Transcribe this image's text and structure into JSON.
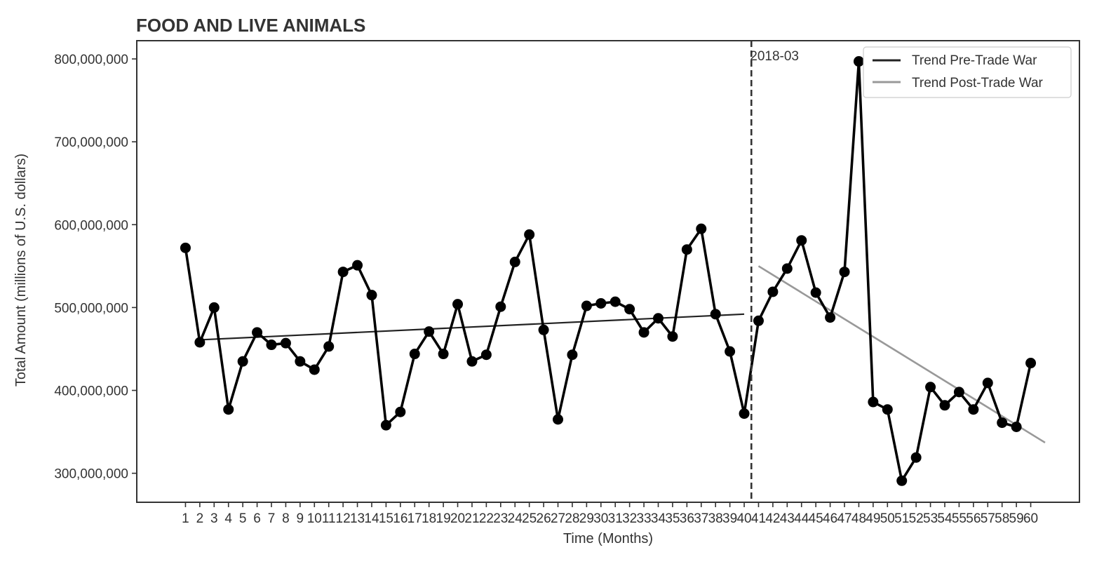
{
  "chart_data": {
    "type": "line",
    "title": "FOOD AND LIVE ANIMALS",
    "xlabel": "Time (Months)",
    "ylabel": "Total Amount (millions of U.S. dollars)",
    "xlim": [
      -2.4,
      63.4
    ],
    "ylim": [
      265000000,
      822000000
    ],
    "x": [
      1,
      2,
      3,
      4,
      5,
      6,
      7,
      8,
      9,
      10,
      11,
      12,
      13,
      14,
      15,
      16,
      17,
      18,
      19,
      20,
      21,
      22,
      23,
      24,
      25,
      26,
      27,
      28,
      29,
      30,
      31,
      32,
      33,
      34,
      35,
      36,
      37,
      38,
      39,
      40,
      41,
      42,
      43,
      44,
      45,
      46,
      47,
      48,
      49,
      50,
      51,
      52,
      53,
      54,
      55,
      56,
      57,
      58,
      59,
      60
    ],
    "x_tick_labels": [
      "1",
      "2",
      "3",
      "4",
      "5",
      "6",
      "7",
      "8",
      "9",
      "10",
      "11",
      "12",
      "13",
      "14",
      "15",
      "16",
      "17",
      "18",
      "19",
      "20",
      "21",
      "22",
      "23",
      "24",
      "25",
      "26",
      "27",
      "28",
      "29",
      "30",
      "31",
      "32",
      "33",
      "34",
      "35",
      "36",
      "37",
      "38",
      "39",
      "40",
      "41",
      "42",
      "43",
      "44",
      "45",
      "46",
      "47",
      "48",
      "49",
      "50",
      "51",
      "52",
      "53",
      "54",
      "55",
      "56",
      "57",
      "58",
      "59",
      "60"
    ],
    "y_ticks": [
      300000000,
      400000000,
      500000000,
      600000000,
      700000000,
      800000000
    ],
    "y_tick_labels": [
      "300,000,000",
      "400,000,000",
      "500,000,000",
      "600,000,000",
      "700,000,000",
      "800,000,000"
    ],
    "series": [
      {
        "values": [
          572000000,
          458000000,
          500000000,
          377000000,
          435000000,
          470000000,
          455000000,
          457000000,
          435000000,
          425000000,
          453000000,
          543000000,
          551000000,
          515000000,
          358000000,
          374000000,
          444000000,
          471000000,
          444000000,
          504000000,
          435000000,
          443000000,
          501000000,
          555000000,
          588000000,
          473000000,
          365000000,
          443000000,
          502000000,
          505000000,
          507000000,
          498000000,
          470000000,
          487000000,
          465000000,
          570000000,
          595000000,
          492000000,
          447000000,
          372000000,
          484000000,
          519000000,
          547000000,
          581000000,
          518000000,
          488000000,
          543000000,
          797000000,
          386000000,
          377000000,
          291000000,
          319000000,
          404000000,
          382000000,
          398000000,
          377000000,
          409000000,
          361000000,
          356000000,
          433000000
        ],
        "color": "#000000"
      }
    ],
    "trend_lines": [
      {
        "name": "Trend Pre-Trade War",
        "color": "#222222",
        "x": [
          2,
          40
        ],
        "y": [
          461000000,
          492000000
        ]
      },
      {
        "name": "Trend Post-Trade War",
        "color": "#999999",
        "x": [
          41,
          61
        ],
        "y": [
          550000000,
          337000000
        ]
      }
    ],
    "vline": {
      "x": 40.5,
      "label": "2018-03",
      "style": "dashed",
      "color": "#333333"
    },
    "legend": {
      "position": "top-right"
    },
    "grid": false
  }
}
